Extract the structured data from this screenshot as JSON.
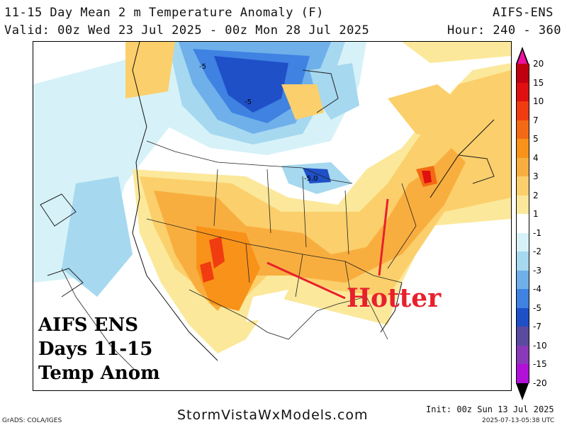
{
  "header": {
    "title": "11-15 Day Mean 2 m Temperature Anomaly (F)",
    "model": "AIFS-ENS",
    "valid": "Valid: 00z Wed 23 Jul 2025 - 00z Mon 28 Jul 2025",
    "hours": "Hour: 240 - 360"
  },
  "overlay": {
    "line1": "AIFS ENS",
    "line2": "Days 11-15",
    "line3": "Temp Anom",
    "annotation": "Hotter"
  },
  "contour_labels": [
    "-5",
    "-5",
    "-5.0"
  ],
  "colorbar": {
    "levels": [
      "20",
      "15",
      "10",
      "7",
      "5",
      "4",
      "3",
      "2",
      "1",
      "-1",
      "-2",
      "-3",
      "-4",
      "-5",
      "-7",
      "-10",
      "-15",
      "-20"
    ],
    "colors": [
      "#f010a0",
      "#c00010",
      "#e01010",
      "#f03c10",
      "#f46a14",
      "#f99219",
      "#f8ae3f",
      "#fbcf6b",
      "#fbe89a",
      "#ffffff",
      "#d6f2f8",
      "#a6d8f0",
      "#6fb0ea",
      "#3f82e2",
      "#1f50c8",
      "#5a4aa0",
      "#8a3ab8",
      "#b010d8"
    ]
  },
  "colors": {
    "hot_annotation": "#e8202c"
  },
  "footer": {
    "grads": "GrADS: COLA/IGES",
    "site": "StormVistaWxModels.com",
    "init": "Init: 00z Sun 13 Jul 2025",
    "timestamp": "2025-07-13-05:38 UTC"
  }
}
